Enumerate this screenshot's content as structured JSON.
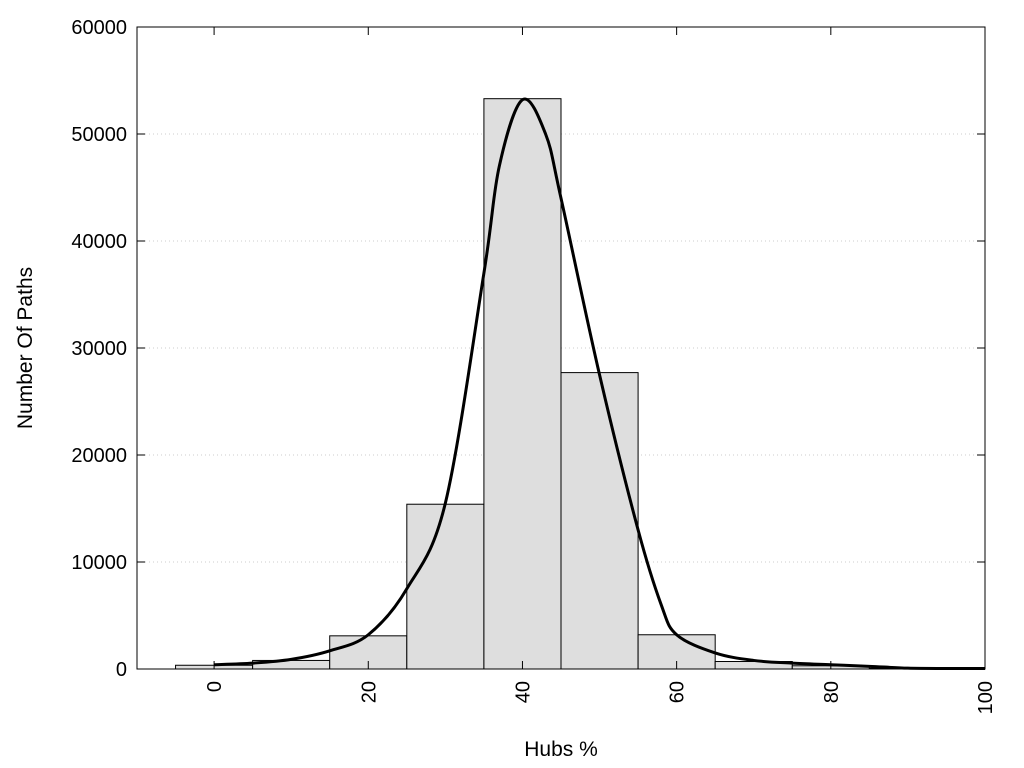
{
  "chart_data": {
    "type": "bar",
    "title": "",
    "xlabel": "Hubs %",
    "ylabel": "Number Of Paths",
    "xlim": [
      -10,
      100
    ],
    "ylim": [
      0,
      60000
    ],
    "grid": true,
    "x_ticks": [
      0,
      20,
      40,
      60,
      80,
      100
    ],
    "y_ticks": [
      0,
      10000,
      20000,
      30000,
      40000,
      50000,
      60000
    ],
    "bin_width": 10,
    "bins": [
      {
        "center": 0,
        "value": 350
      },
      {
        "center": 10,
        "value": 800
      },
      {
        "center": 20,
        "value": 3100
      },
      {
        "center": 30,
        "value": 15400
      },
      {
        "center": 40,
        "value": 53300
      },
      {
        "center": 50,
        "value": 27700
      },
      {
        "center": 60,
        "value": 3200
      },
      {
        "center": 70,
        "value": 700
      },
      {
        "center": 80,
        "value": 300
      },
      {
        "center": 90,
        "value": 50
      },
      {
        "center": 100,
        "value": 50
      }
    ],
    "density_curve": {
      "x": [
        0,
        5,
        10,
        15,
        20,
        25,
        30,
        35,
        37,
        40,
        43,
        45,
        50,
        55,
        58,
        60,
        65,
        70,
        75,
        80,
        85,
        90,
        95,
        100
      ],
      "y": [
        400,
        550,
        900,
        1700,
        3200,
        7500,
        15500,
        37000,
        47000,
        53200,
        50000,
        44000,
        27500,
        13000,
        6000,
        3200,
        1500,
        800,
        550,
        400,
        250,
        80,
        50,
        50
      ]
    },
    "colors": {
      "bar_fill": "#dedede",
      "bar_stroke": "#000000",
      "curve": "#000000",
      "grid": "#cccccc"
    }
  }
}
